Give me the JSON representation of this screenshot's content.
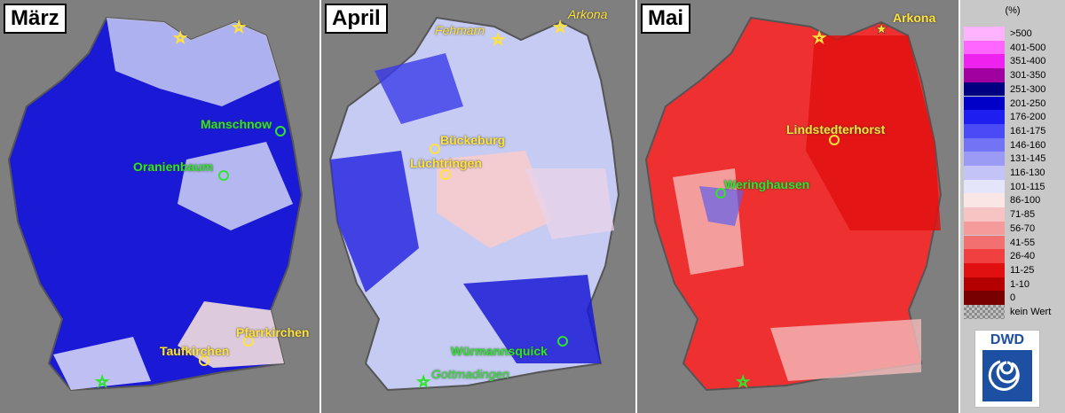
{
  "panels": [
    {
      "title": "März",
      "labels": {
        "manschnow": "Manschnow",
        "oranienbaum": "Oranienbaum",
        "pfarrkirchen": "Pfarrkirchen",
        "taufkirchen": "Taufkirchen"
      },
      "dominant_color": "#1a1ad6"
    },
    {
      "title": "April",
      "labels": {
        "fehmarn": "Fehmarn",
        "arkona": "Arkona",
        "bueckeburg": "Bückeburg",
        "luechtringen": "Lüchtringen",
        "wuermannsquick": "Würmannsquick",
        "gottmadingen": "Gottmadingen"
      },
      "dominant_color": "#9fb0f0"
    },
    {
      "title": "Mai",
      "labels": {
        "arkona": "Arkona",
        "lindstedterhorst": "Lindstedterhorst",
        "weringhausen": "Weringhausen"
      },
      "dominant_color": "#ee3030"
    }
  ],
  "legend": {
    "unit": "(%)",
    "classes": [
      {
        "label": ">500",
        "color": "#ffb3ff"
      },
      {
        "label": "401-500",
        "color": "#ff66ff"
      },
      {
        "label": "351-400",
        "color": "#ee22ee"
      },
      {
        "label": "301-350",
        "color": "#a000a0"
      },
      {
        "label": "251-300",
        "color": "#000080"
      },
      {
        "label": "201-250",
        "color": "#0000c8"
      },
      {
        "label": "176-200",
        "color": "#1e1ef0"
      },
      {
        "label": "161-175",
        "color": "#4b4bf5"
      },
      {
        "label": "146-160",
        "color": "#7373f5"
      },
      {
        "label": "131-145",
        "color": "#9b9bf5"
      },
      {
        "label": "116-130",
        "color": "#c3c3f8"
      },
      {
        "label": "101-115",
        "color": "#e4e4fb"
      },
      {
        "label": "86-100",
        "color": "#fbe6e6"
      },
      {
        "label": "71-85",
        "color": "#f8c3c3"
      },
      {
        "label": "56-70",
        "color": "#f59b9b"
      },
      {
        "label": "41-55",
        "color": "#f37070"
      },
      {
        "label": "26-40",
        "color": "#f04040"
      },
      {
        "label": "11-25",
        "color": "#e01010"
      },
      {
        "label": "1-10",
        "color": "#b40000"
      },
      {
        "label": "0",
        "color": "#780000"
      },
      {
        "label": "kein Wert",
        "color": "#a0a0a0"
      }
    ]
  },
  "logo": {
    "text": "DWD",
    "color": "#1d4fa2"
  }
}
